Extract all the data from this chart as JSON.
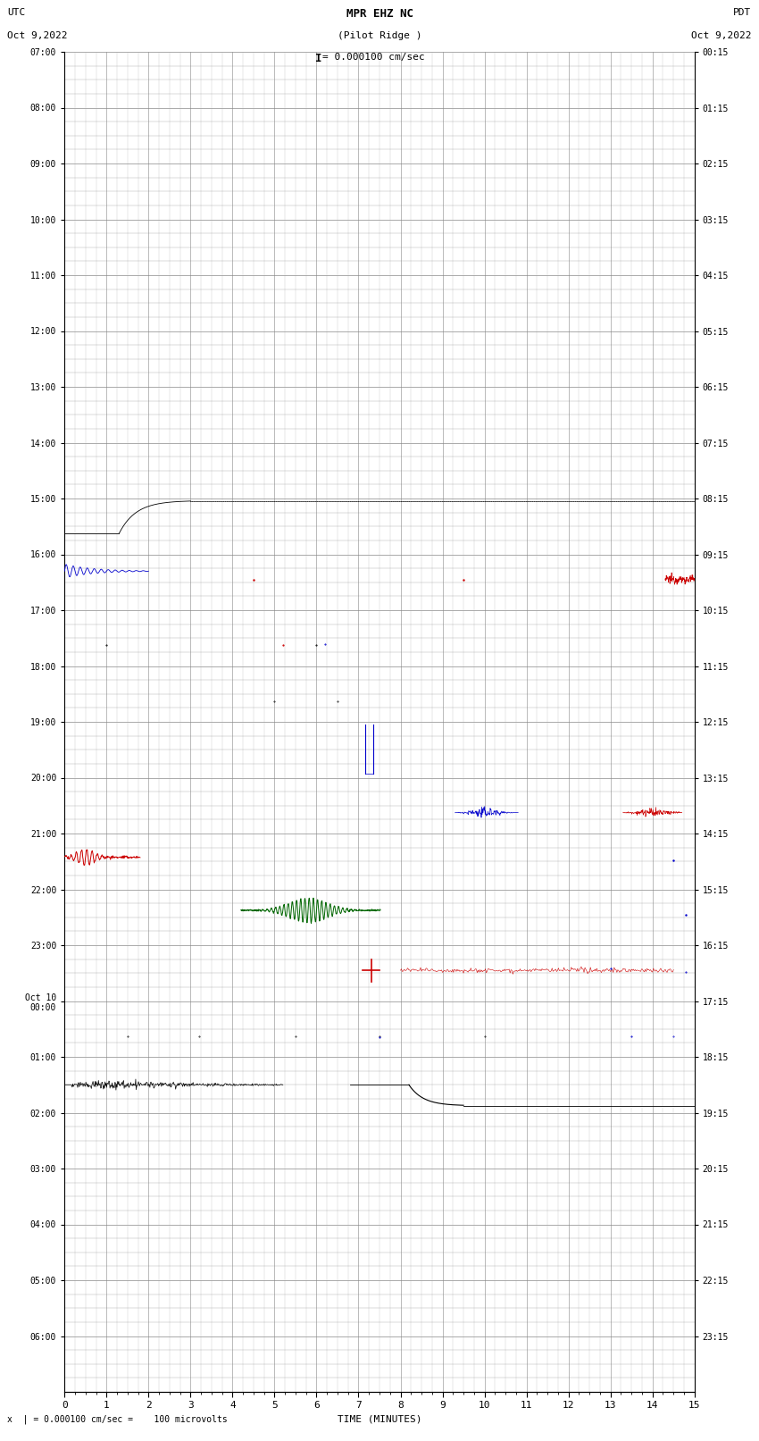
{
  "title_line1": "MPR EHZ NC",
  "title_line2": "(Pilot Ridge )",
  "title_scale": "= 0.000100 cm/sec",
  "title_scale_prefix": "I",
  "left_label_top": "UTC",
  "left_label_date": "Oct 9,2022",
  "right_label_top": "PDT",
  "right_label_date": "Oct 9,2022",
  "bottom_label": "TIME (MINUTES)",
  "bottom_note": "x  | = 0.000100 cm/sec =    100 microvolts",
  "utc_labels": [
    "07:00",
    "08:00",
    "09:00",
    "10:00",
    "11:00",
    "12:00",
    "13:00",
    "14:00",
    "15:00",
    "16:00",
    "17:00",
    "18:00",
    "19:00",
    "20:00",
    "21:00",
    "22:00",
    "23:00",
    "Oct 10\n00:00",
    "01:00",
    "02:00",
    "03:00",
    "04:00",
    "05:00",
    "06:00"
  ],
  "pdt_labels": [
    "00:15",
    "01:15",
    "02:15",
    "03:15",
    "04:15",
    "05:15",
    "06:15",
    "07:15",
    "08:15",
    "09:15",
    "10:15",
    "11:15",
    "12:15",
    "13:15",
    "14:15",
    "15:15",
    "16:15",
    "17:15",
    "18:15",
    "19:15",
    "20:15",
    "21:15",
    "22:15",
    "23:15"
  ],
  "n_rows": 24,
  "n_subrows": 4,
  "x_min": 0,
  "x_max": 15,
  "background_color": "#ffffff",
  "grid_color": "#aaaaaa",
  "grid_major_color": "#888888"
}
